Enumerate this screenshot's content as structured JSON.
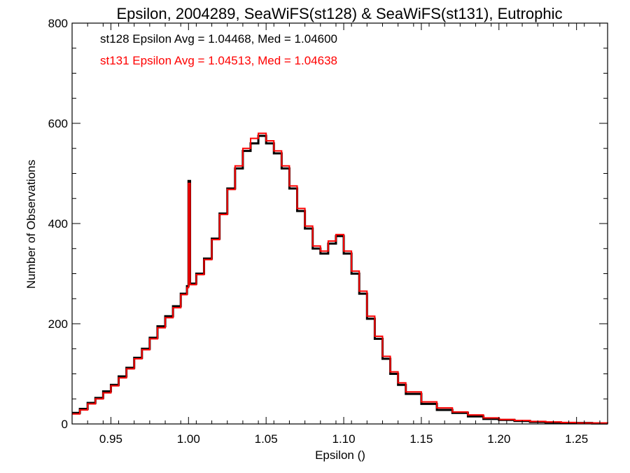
{
  "chart_data": {
    "type": "line",
    "title": "Epsilon, 2004289, SeaWiFS(st128) & SeaWiFS(st131), Eutrophic",
    "xlabel": "Epsilon ()",
    "ylabel": "Number of Observations",
    "xlim": [
      0.925,
      1.27
    ],
    "ylim": [
      0,
      800
    ],
    "xticks": [
      0.95,
      1.0,
      1.05,
      1.1,
      1.15,
      1.2,
      1.25
    ],
    "xtick_labels": [
      "0.95",
      "1.00",
      "1.05",
      "1.10",
      "1.15",
      "1.20",
      "1.25"
    ],
    "yticks": [
      0,
      200,
      400,
      600,
      800
    ],
    "ytick_labels": [
      "0",
      "200",
      "400",
      "600",
      "800"
    ],
    "grid": false,
    "annotations": [
      {
        "text": "st128 Epsilon Avg = 1.04468, Med = 1.04600",
        "color": "#000000"
      },
      {
        "text": "st131 Epsilon Avg = 1.04513, Med = 1.04638",
        "color": "#ff0000"
      }
    ],
    "series": [
      {
        "color": "#000000",
        "style": "step",
        "x": [
          0.925,
          0.93,
          0.935,
          0.94,
          0.945,
          0.95,
          0.955,
          0.96,
          0.965,
          0.97,
          0.975,
          0.98,
          0.985,
          0.99,
          0.995,
          0.999,
          1.0,
          1.001,
          1.005,
          1.01,
          1.015,
          1.02,
          1.025,
          1.03,
          1.035,
          1.04,
          1.045,
          1.05,
          1.055,
          1.06,
          1.065,
          1.07,
          1.075,
          1.08,
          1.085,
          1.09,
          1.095,
          1.1,
          1.105,
          1.11,
          1.115,
          1.12,
          1.125,
          1.13,
          1.135,
          1.14,
          1.15,
          1.16,
          1.17,
          1.18,
          1.19,
          1.2,
          1.21,
          1.22,
          1.23,
          1.24,
          1.25,
          1.26,
          1.27
        ],
        "y": [
          22,
          30,
          42,
          52,
          65,
          78,
          95,
          112,
          132,
          150,
          172,
          195,
          215,
          235,
          260,
          275,
          485,
          280,
          300,
          330,
          370,
          420,
          470,
          510,
          545,
          560,
          575,
          560,
          540,
          510,
          470,
          425,
          390,
          350,
          340,
          360,
          375,
          340,
          300,
          260,
          210,
          170,
          130,
          100,
          78,
          60,
          40,
          28,
          22,
          15,
          10,
          8,
          6,
          4,
          3,
          2,
          2,
          1,
          1
        ]
      },
      {
        "color": "#ff0000",
        "style": "step",
        "x": [
          0.925,
          0.93,
          0.935,
          0.94,
          0.945,
          0.95,
          0.955,
          0.96,
          0.965,
          0.97,
          0.975,
          0.98,
          0.985,
          0.99,
          0.995,
          0.999,
          1.0,
          1.001,
          1.005,
          1.01,
          1.015,
          1.02,
          1.025,
          1.03,
          1.035,
          1.04,
          1.045,
          1.05,
          1.055,
          1.06,
          1.065,
          1.07,
          1.075,
          1.08,
          1.085,
          1.09,
          1.095,
          1.1,
          1.105,
          1.11,
          1.115,
          1.12,
          1.125,
          1.13,
          1.135,
          1.14,
          1.15,
          1.16,
          1.17,
          1.18,
          1.19,
          1.2,
          1.21,
          1.22,
          1.23,
          1.24,
          1.25,
          1.26,
          1.27
        ],
        "y": [
          20,
          28,
          40,
          50,
          62,
          76,
          92,
          110,
          130,
          148,
          170,
          192,
          212,
          232,
          258,
          272,
          480,
          278,
          298,
          328,
          368,
          418,
          468,
          515,
          550,
          570,
          580,
          565,
          545,
          515,
          475,
          430,
          395,
          355,
          345,
          365,
          378,
          345,
          305,
          265,
          215,
          175,
          135,
          104,
          82,
          64,
          44,
          32,
          24,
          18,
          12,
          9,
          7,
          5,
          4,
          3,
          2,
          2,
          1
        ]
      }
    ]
  }
}
